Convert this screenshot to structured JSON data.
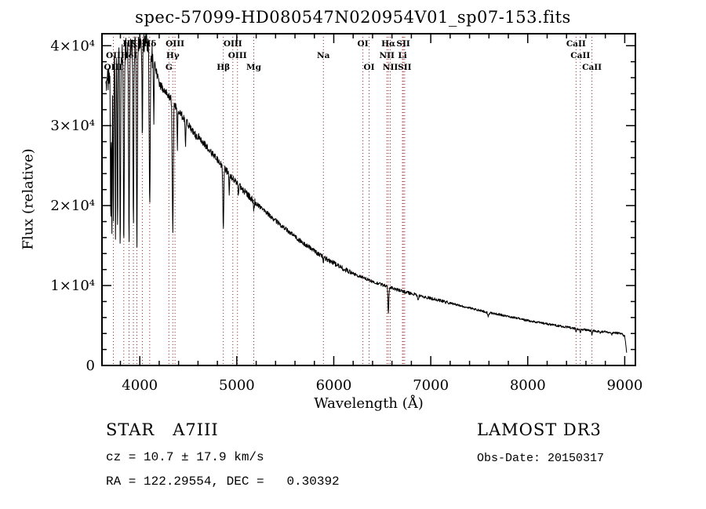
{
  "chart_data": {
    "type": "line",
    "title": "spec-57099-HD080547N020954V01_sp07-153.fits",
    "xlabel": "Wavelength (Å)",
    "ylabel": "Flux (relative)",
    "xlim": [
      3610,
      9110
    ],
    "ylim": [
      0,
      41500
    ],
    "x_ticks": [
      4000,
      5000,
      6000,
      7000,
      8000,
      9000
    ],
    "x_tick_labels": [
      "4000",
      "5000",
      "6000",
      "7000",
      "8000",
      "9000"
    ],
    "y_ticks": [
      0,
      10000,
      20000,
      30000,
      40000
    ],
    "y_tick_labels": [
      "0",
      "1×10⁴",
      "2×10⁴",
      "3×10⁴",
      "4×10⁴"
    ],
    "x_minor_step": 200,
    "y_minor_step": 2000,
    "grid": false,
    "legend": "none",
    "line_color": "#000000",
    "marker_line_color": "#8f2626",
    "axis_color": "#000000",
    "seed": 20150317,
    "sample_step": 3,
    "continuum": [
      [
        3650,
        36200
      ],
      [
        3690,
        37000
      ],
      [
        3740,
        38500
      ],
      [
        3800,
        39800
      ],
      [
        3860,
        40400
      ],
      [
        3920,
        40800
      ],
      [
        3980,
        41000
      ],
      [
        4040,
        41200
      ],
      [
        4100,
        41200
      ],
      [
        4150,
        38000
      ],
      [
        4200,
        35500
      ],
      [
        4260,
        34600
      ],
      [
        4320,
        33600
      ],
      [
        4380,
        32600
      ],
      [
        4450,
        31200
      ],
      [
        4520,
        30000
      ],
      [
        4600,
        28700
      ],
      [
        4700,
        27200
      ],
      [
        4800,
        25700
      ],
      [
        4900,
        24300
      ],
      [
        5000,
        22800
      ],
      [
        5100,
        21500
      ],
      [
        5200,
        20300
      ],
      [
        5300,
        19200
      ],
      [
        5400,
        18100
      ],
      [
        5500,
        17100
      ],
      [
        5600,
        16100
      ],
      [
        5700,
        15200
      ],
      [
        5800,
        14300
      ],
      [
        5900,
        13500
      ],
      [
        6000,
        12800
      ],
      [
        6100,
        12100
      ],
      [
        6200,
        11500
      ],
      [
        6300,
        11000
      ],
      [
        6400,
        10500
      ],
      [
        6500,
        10100
      ],
      [
        6600,
        9700
      ],
      [
        6700,
        9300
      ],
      [
        6800,
        9000
      ],
      [
        6900,
        8700
      ],
      [
        7000,
        8400
      ],
      [
        7100,
        8100
      ],
      [
        7200,
        7800
      ],
      [
        7300,
        7500
      ],
      [
        7400,
        7200
      ],
      [
        7500,
        6900
      ],
      [
        7600,
        6600
      ],
      [
        7700,
        6400
      ],
      [
        7800,
        6100
      ],
      [
        7900,
        5900
      ],
      [
        8000,
        5600
      ],
      [
        8100,
        5400
      ],
      [
        8200,
        5200
      ],
      [
        8300,
        5000
      ],
      [
        8400,
        4800
      ],
      [
        8500,
        4600
      ],
      [
        8600,
        4450
      ],
      [
        8700,
        4300
      ],
      [
        8800,
        4200
      ],
      [
        8900,
        4100
      ],
      [
        8960,
        4000
      ],
      [
        9000,
        3700
      ],
      [
        9010,
        2800
      ],
      [
        9020,
        1600
      ]
    ],
    "absorption_lines": [
      {
        "wl": 3700,
        "depth": 0.5,
        "width": 10
      },
      {
        "wl": 3712,
        "depth": 0.55,
        "width": 9
      },
      {
        "wl": 3727,
        "depth": 0.5,
        "width": 10
      },
      {
        "wl": 3750,
        "depth": 0.58,
        "width": 10
      },
      {
        "wl": 3771,
        "depth": 0.58,
        "width": 10
      },
      {
        "wl": 3798,
        "depth": 0.6,
        "width": 12
      },
      {
        "wl": 3835,
        "depth": 0.6,
        "width": 13
      },
      {
        "wl": 3889,
        "depth": 0.6,
        "width": 13
      },
      {
        "wl": 3934,
        "depth": 0.55,
        "width": 12
      },
      {
        "wl": 3970,
        "depth": 0.6,
        "width": 13
      },
      {
        "wl": 4026,
        "depth": 0.3,
        "width": 9
      },
      {
        "wl": 4102,
        "depth": 0.5,
        "width": 15
      },
      {
        "wl": 4144,
        "depth": 0.2,
        "width": 8
      },
      {
        "wl": 4340,
        "depth": 0.48,
        "width": 15
      },
      {
        "wl": 4388,
        "depth": 0.15,
        "width": 8
      },
      {
        "wl": 4471,
        "depth": 0.12,
        "width": 8
      },
      {
        "wl": 4861,
        "depth": 0.3,
        "width": 14
      },
      {
        "wl": 4922,
        "depth": 0.1,
        "width": 8
      },
      {
        "wl": 5015,
        "depth": 0.07,
        "width": 8
      },
      {
        "wl": 5175,
        "depth": 0.06,
        "width": 10
      },
      {
        "wl": 5893,
        "depth": 0.05,
        "width": 8
      },
      {
        "wl": 6563,
        "depth": 0.35,
        "width": 13
      },
      {
        "wl": 6870,
        "depth": 0.06,
        "width": 16
      },
      {
        "wl": 7594,
        "depth": 0.07,
        "width": 18
      },
      {
        "wl": 8498,
        "depth": 0.09,
        "width": 9
      },
      {
        "wl": 8542,
        "depth": 0.11,
        "width": 9
      },
      {
        "wl": 8662,
        "depth": 0.11,
        "width": 9
      },
      {
        "wl": 8750,
        "depth": 0.05,
        "width": 9
      },
      {
        "wl": 8865,
        "depth": 0.07,
        "width": 11
      }
    ],
    "noise_regions": [
      {
        "from": 3650,
        "to": 4150,
        "amp": 2200,
        "bias": "down"
      },
      {
        "from": 4150,
        "to": 4600,
        "amp": 800,
        "bias": "down"
      },
      {
        "from": 4600,
        "to": 5200,
        "amp": 420,
        "bias": "sym"
      },
      {
        "from": 5200,
        "to": 6200,
        "amp": 300,
        "bias": "sym"
      },
      {
        "from": 6200,
        "to": 7200,
        "amp": 200,
        "bias": "sym"
      },
      {
        "from": 7200,
        "to": 9020,
        "amp": 140,
        "bias": "sym"
      }
    ],
    "marked_wavelengths": [
      3727,
      3835,
      3889,
      3934,
      3970,
      4026,
      4102,
      4300,
      4340,
      4363,
      4861,
      4959,
      5007,
      5175,
      5893,
      6300,
      6364,
      6548,
      6563,
      6583,
      6708,
      6717,
      6731,
      8498,
      8542,
      8662
    ],
    "spectral_markers": [
      {
        "wl": 3889,
        "label": "Hζ",
        "row": 0
      },
      {
        "wl": 3934,
        "label": "K",
        "row": 0
      },
      {
        "wl": 4102,
        "label": "Hδ",
        "row": 0
      },
      {
        "wl": 4363,
        "label": "OIII",
        "row": 0
      },
      {
        "wl": 4959,
        "label": "OIII",
        "row": 0
      },
      {
        "wl": 6300,
        "label": "OI",
        "row": 0
      },
      {
        "wl": 6563,
        "label": "Hα",
        "row": 0
      },
      {
        "wl": 6717,
        "label": "SII",
        "row": 0
      },
      {
        "wl": 8498,
        "label": "CaII",
        "row": 0
      },
      {
        "wl": 3727,
        "label": "OII",
        "row": 1
      },
      {
        "wl": 3889,
        "label": "HeI",
        "row": 1
      },
      {
        "wl": 4340,
        "label": "Hγ",
        "row": 1
      },
      {
        "wl": 5007,
        "label": "OIII",
        "row": 1
      },
      {
        "wl": 5893,
        "label": "Na",
        "row": 1
      },
      {
        "wl": 6548,
        "label": "NII",
        "row": 1
      },
      {
        "wl": 6708,
        "label": "Li",
        "row": 1
      },
      {
        "wl": 8542,
        "label": "CaII",
        "row": 1
      },
      {
        "wl": 3727,
        "label": "OIII",
        "row": 2
      },
      {
        "wl": 4300,
        "label": "G",
        "row": 2
      },
      {
        "wl": 4861,
        "label": "Hβ",
        "row": 2
      },
      {
        "wl": 5175,
        "label": "Mg",
        "row": 2
      },
      {
        "wl": 6364,
        "label": "OI",
        "row": 2
      },
      {
        "wl": 6583,
        "label": "NII",
        "row": 2
      },
      {
        "wl": 6731,
        "label": "SII",
        "row": 2
      },
      {
        "wl": 8662,
        "label": "CaII",
        "row": 2
      }
    ]
  },
  "annotations": {
    "class_label": "STAR   A7III",
    "survey": "LAMOST DR3",
    "cz": "cz = 10.7 ± 17.9 km/s",
    "obs_date": "Obs-Date: 20150317",
    "ra_dec": "RA = 122.29554, DEC =   0.30392"
  }
}
